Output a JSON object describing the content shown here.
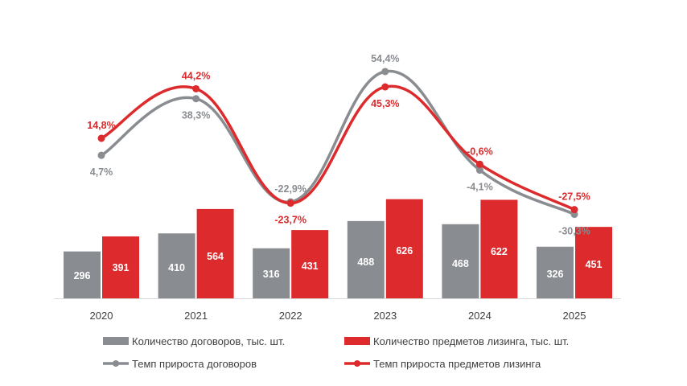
{
  "chart_data": {
    "type": "bar+line",
    "categories": [
      "2020",
      "2021",
      "2022",
      "2023",
      "2024",
      "2025"
    ],
    "bar_series": [
      {
        "name": "Количество договоров, тыс. шт.",
        "color": "#898c90",
        "values": [
          296,
          410,
          316,
          488,
          468,
          326
        ]
      },
      {
        "name": "Количество предметов лизинга, тыс. шт.",
        "color": "#dd2a2c",
        "values": [
          391,
          564,
          431,
          626,
          622,
          451
        ]
      }
    ],
    "line_series": [
      {
        "name": "Темп прироста договоров",
        "color": "#898c90",
        "values": [
          4.7,
          38.3,
          -22.9,
          54.4,
          -4.1,
          -30.3
        ],
        "labels": [
          "4,7%",
          "38,3%",
          "-22,9%",
          "54,4%",
          "-4,1%",
          "-30,3%"
        ]
      },
      {
        "name": "Темп прироста предметов лизинга",
        "color": "#dd2a2c",
        "values": [
          14.8,
          44.2,
          -23.7,
          45.3,
          -0.6,
          -27.5
        ],
        "labels": [
          "14,8%",
          "44,2%",
          "-23,7%",
          "45,3%",
          "-0,6%",
          "-27,5%"
        ]
      }
    ],
    "legend_position": "bottom",
    "grid": false
  }
}
